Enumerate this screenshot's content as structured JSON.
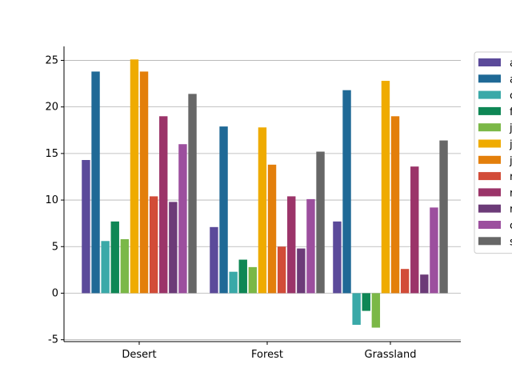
{
  "chart_data": {
    "type": "bar",
    "categories": [
      "Desert",
      "Forest",
      "Grassland"
    ],
    "ylim": [
      -5.2,
      26.5
    ],
    "yticks": [
      -5,
      0,
      5,
      10,
      15,
      20,
      25
    ],
    "grid": "horizontal",
    "legend_position": "right",
    "series": [
      {
        "name": "a",
        "color": "#5b4a9a",
        "values": [
          14.3,
          7.1,
          7.7
        ]
      },
      {
        "name": "a",
        "color": "#1f6996",
        "values": [
          23.8,
          17.9,
          21.8
        ]
      },
      {
        "name": "c",
        "color": "#3aa9a8",
        "values": [
          5.6,
          2.3,
          -3.4
        ]
      },
      {
        "name": "f",
        "color": "#0e8755",
        "values": [
          7.7,
          3.6,
          -1.9
        ]
      },
      {
        "name": "j",
        "color": "#7bb847",
        "values": [
          5.8,
          2.8,
          -3.7
        ]
      },
      {
        "name": "j",
        "color": "#efab00",
        "values": [
          25.1,
          17.8,
          22.8
        ]
      },
      {
        "name": "j",
        "color": "#e37f0b",
        "values": [
          23.8,
          13.8,
          19.0
        ]
      },
      {
        "name": "r",
        "color": "#d24c38",
        "values": [
          10.4,
          5.0,
          2.6
        ]
      },
      {
        "name": "r",
        "color": "#9b3469",
        "values": [
          19.0,
          10.4,
          13.6
        ]
      },
      {
        "name": "r",
        "color": "#6c3b78",
        "values": [
          9.8,
          4.8,
          2.0
        ]
      },
      {
        "name": "c",
        "color": "#9c4f9e",
        "values": [
          16.0,
          10.1,
          9.2
        ]
      },
      {
        "name": "s",
        "color": "#676767",
        "values": [
          21.4,
          15.2,
          16.4
        ]
      }
    ]
  }
}
